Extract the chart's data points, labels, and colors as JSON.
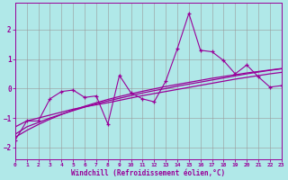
{
  "xlabel": "Windchill (Refroidissement éolien,°C)",
  "bg_color": "#b0e8e8",
  "line_color": "#990099",
  "grid_color": "#999999",
  "x_data": [
    0,
    1,
    2,
    3,
    4,
    5,
    6,
    7,
    8,
    9,
    10,
    11,
    12,
    13,
    14,
    15,
    16,
    17,
    18,
    19,
    20,
    21,
    22,
    23
  ],
  "y_scatter": [
    -1.75,
    -1.1,
    -1.1,
    -0.35,
    -0.1,
    -0.05,
    -0.3,
    -0.25,
    -1.2,
    0.45,
    -0.15,
    -0.35,
    -0.45,
    0.25,
    1.35,
    2.55,
    1.3,
    1.25,
    0.95,
    0.5,
    0.8,
    0.4,
    0.05,
    0.1
  ],
  "y_line1": [
    -1.3,
    -1.1,
    -1.0,
    -0.9,
    -0.8,
    -0.7,
    -0.62,
    -0.55,
    -0.48,
    -0.4,
    -0.32,
    -0.24,
    -0.17,
    -0.1,
    -0.03,
    0.04,
    0.11,
    0.18,
    0.25,
    0.32,
    0.38,
    0.44,
    0.5,
    0.55
  ],
  "y_line2": [
    -1.55,
    -1.3,
    -1.15,
    -1.0,
    -0.87,
    -0.75,
    -0.63,
    -0.52,
    -0.42,
    -0.33,
    -0.24,
    -0.15,
    -0.07,
    0.0,
    0.08,
    0.15,
    0.22,
    0.29,
    0.36,
    0.43,
    0.5,
    0.56,
    0.62,
    0.67
  ],
  "y_line3": [
    -1.65,
    -1.42,
    -1.22,
    -1.04,
    -0.88,
    -0.73,
    -0.6,
    -0.48,
    -0.37,
    -0.27,
    -0.18,
    -0.09,
    -0.01,
    0.07,
    0.14,
    0.21,
    0.28,
    0.35,
    0.41,
    0.47,
    0.53,
    0.58,
    0.63,
    0.68
  ],
  "ylim": [
    -2.4,
    2.9
  ],
  "xlim": [
    0,
    23
  ],
  "yticks": [
    -2,
    -1,
    0,
    1,
    2
  ],
  "xticks": [
    0,
    1,
    2,
    3,
    4,
    5,
    6,
    7,
    8,
    9,
    10,
    11,
    12,
    13,
    14,
    15,
    16,
    17,
    18,
    19,
    20,
    21,
    22,
    23
  ]
}
